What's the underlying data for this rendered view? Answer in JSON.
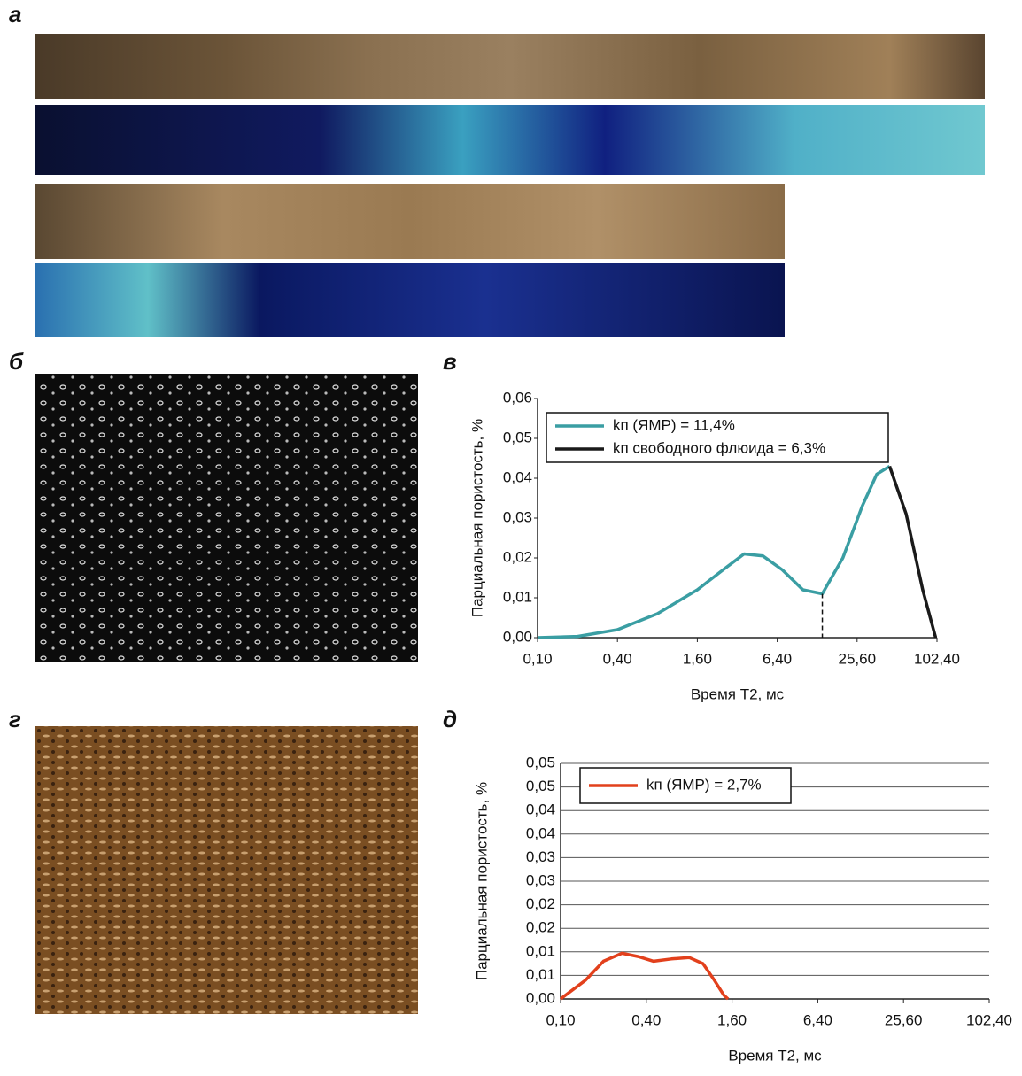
{
  "photos": [
    {
      "panel_label": "а"
    },
    {
      "panel_label": "б"
    },
    {
      "panel_label": "г"
    }
  ],
  "chart_data": [
    {
      "type": "line",
      "panel_label": "в",
      "xlabel": "Время T2, мс",
      "ylabel": "Парциальная пористость, %",
      "xscale": "log",
      "xlim": [
        0.1,
        102.4
      ],
      "xticks": [
        {
          "value": 0.1,
          "label": "0,10"
        },
        {
          "value": 0.4,
          "label": "0,40"
        },
        {
          "value": 1.6,
          "label": "1,60"
        },
        {
          "value": 6.4,
          "label": "6,40"
        },
        {
          "value": 25.6,
          "label": "25,60"
        },
        {
          "value": 102.4,
          "label": "102,40"
        }
      ],
      "ylim": [
        0,
        0.06
      ],
      "yticks": [
        {
          "value": 0,
          "label": "0,00"
        },
        {
          "value": 0.01,
          "label": "0,01"
        },
        {
          "value": 0.02,
          "label": "0,02"
        },
        {
          "value": 0.03,
          "label": "0,03"
        },
        {
          "value": 0.04,
          "label": "0,04"
        },
        {
          "value": 0.05,
          "label": "0,05"
        },
        {
          "value": 0.06,
          "label": "0,06"
        }
      ],
      "grid": false,
      "series": [
        {
          "name": "kп (ЯМР) = 11,4%",
          "color": "#3a9ea3",
          "x": [
            0.1,
            0.2,
            0.4,
            0.8,
            1.6,
            2.5,
            3.6,
            5,
            7,
            10,
            14,
            20,
            28,
            36,
            45
          ],
          "values": [
            0,
            0.0003,
            0.002,
            0.006,
            0.012,
            0.017,
            0.021,
            0.0205,
            0.017,
            0.012,
            0.011,
            0.02,
            0.033,
            0.041,
            0.043
          ]
        },
        {
          "name": "kп свободного флюида = 6,3%",
          "color": "#1a1a1a",
          "x": [
            45,
            60,
            80,
            100
          ],
          "values": [
            0.043,
            0.031,
            0.012,
            0
          ]
        }
      ]
    },
    {
      "type": "line",
      "panel_label": "д",
      "xlabel": "Время T2, мс",
      "ylabel": "Парциальная пористость, %",
      "xscale": "log",
      "xlim": [
        0.1,
        102.4
      ],
      "xticks": [
        {
          "value": 0.1,
          "label": "0,10"
        },
        {
          "value": 0.4,
          "label": "0,40"
        },
        {
          "value": 1.6,
          "label": "1,60"
        },
        {
          "value": 6.4,
          "label": "6,40"
        },
        {
          "value": 25.6,
          "label": "25,60"
        },
        {
          "value": 102.4,
          "label": "102,40"
        }
      ],
      "ylim": [
        0,
        0.05
      ],
      "yticks": [
        {
          "value": 0,
          "label": "0,00"
        },
        {
          "value": 0.005,
          "label": "0,01"
        },
        {
          "value": 0.01,
          "label": "0,01"
        },
        {
          "value": 0.015,
          "label": "0,02"
        },
        {
          "value": 0.02,
          "label": "0,02"
        },
        {
          "value": 0.025,
          "label": "0,03"
        },
        {
          "value": 0.03,
          "label": "0,03"
        },
        {
          "value": 0.035,
          "label": "0,04"
        },
        {
          "value": 0.04,
          "label": "0,04"
        },
        {
          "value": 0.045,
          "label": "0,05"
        },
        {
          "value": 0.05,
          "label": "0,05"
        }
      ],
      "grid": true,
      "series": [
        {
          "name": "kп (ЯМР) = 2,7%",
          "color": "#e2401c",
          "x": [
            0.1,
            0.15,
            0.2,
            0.27,
            0.35,
            0.45,
            0.6,
            0.8,
            1.0,
            1.2,
            1.4,
            1.5
          ],
          "values": [
            0,
            0.004,
            0.008,
            0.0097,
            0.009,
            0.008,
            0.0085,
            0.0088,
            0.0075,
            0.004,
            0.0008,
            0
          ]
        }
      ]
    }
  ]
}
